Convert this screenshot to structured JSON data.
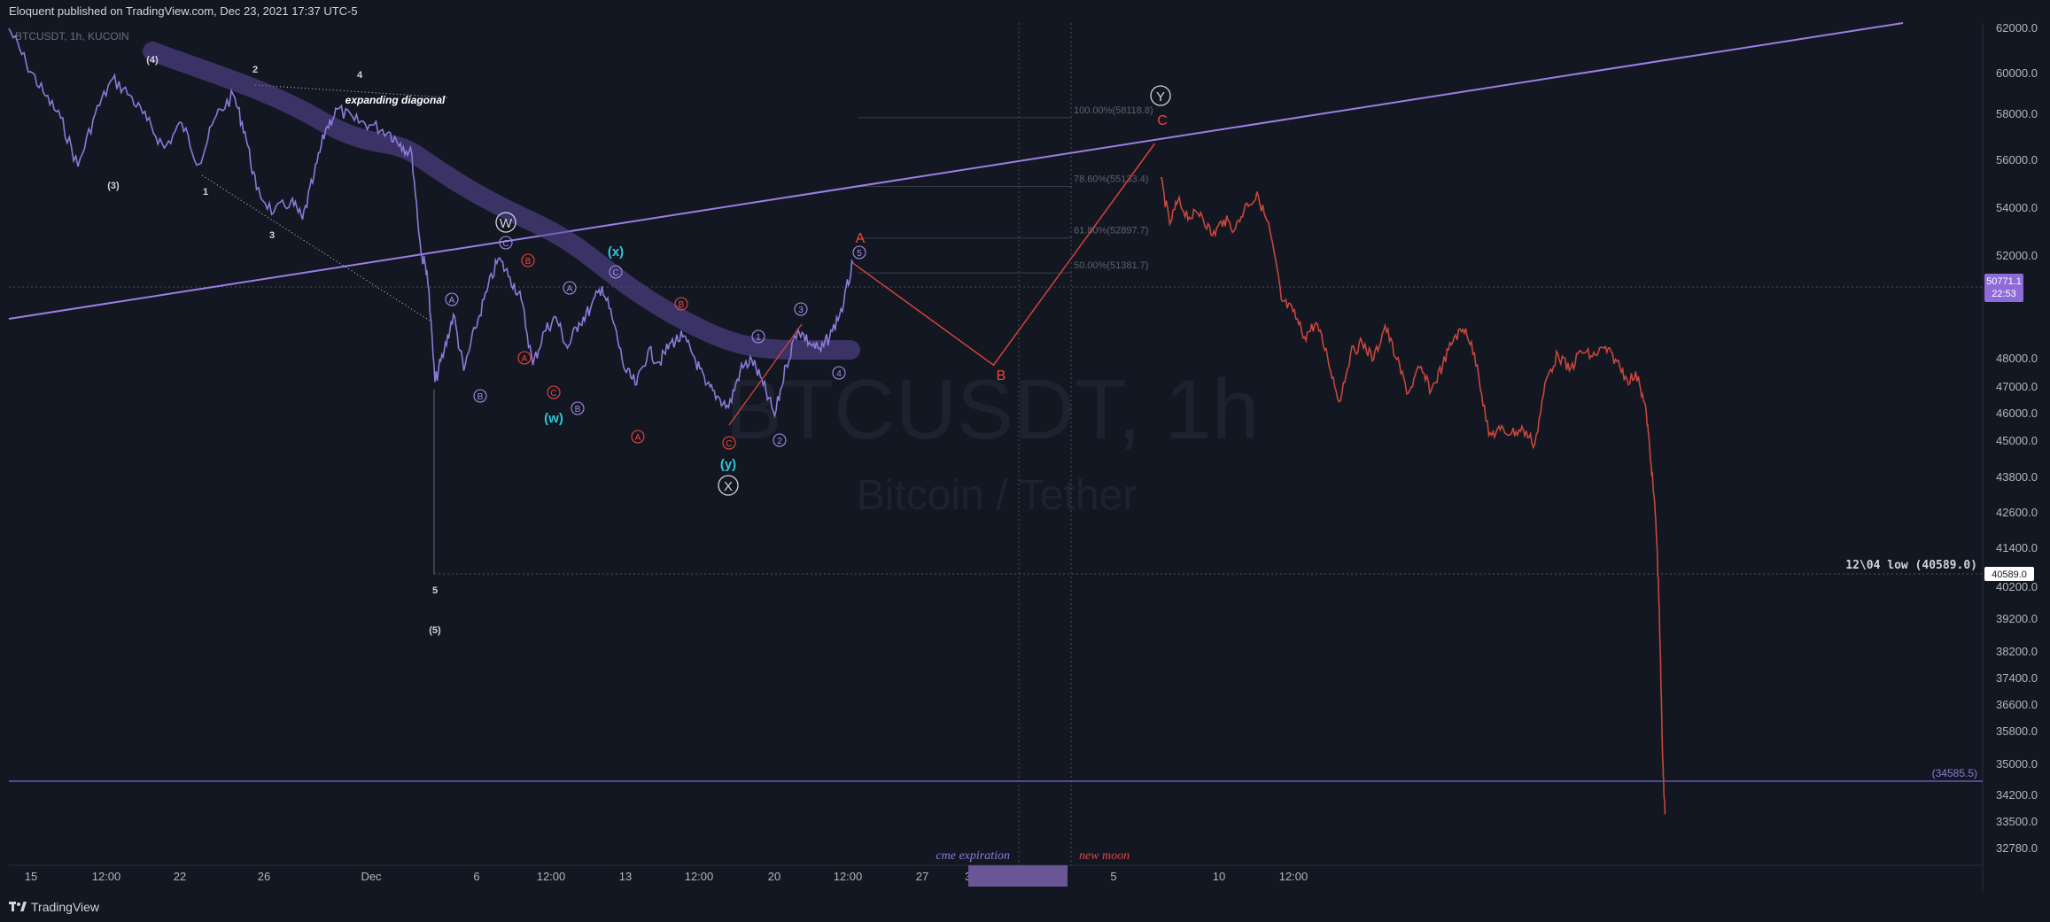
{
  "header": {
    "publish_text": "Eloquent published on TradingView.com, Dec 23, 2021 17:37 UTC-5",
    "symbol_info": "BTCUSDT, 1h, KUCOIN"
  },
  "watermark": {
    "symbol": "BTCUSDT, 1h",
    "description": "Bitcoin / Tether"
  },
  "footer": {
    "brand": "TradingView"
  },
  "colors": {
    "background": "#131722",
    "historic_price": "#8c7ad8",
    "projected_price": "#d2443a",
    "trendline": "#9c7fe6",
    "wave_red": "#f0443c",
    "wave_cyan": "#2cc9d8",
    "wave_purple": "#a58ae6",
    "price_tag": "#8e6bd8"
  },
  "chart_data": {
    "type": "line",
    "title": "",
    "xlabel": "",
    "ylabel": "",
    "ylim": [
      32200,
      62300
    ],
    "y_ticks": [
      "62000.0",
      "60000.0",
      "58000.0",
      "56000.0",
      "54000.0",
      "52000.0",
      "48000.0",
      "47000.0",
      "46000.0",
      "45000.0",
      "43800.0",
      "42600.0",
      "41400.0",
      "40200.0",
      "39200.0",
      "38200.0",
      "37400.0",
      "36600.0",
      "35800.0",
      "35000.0",
      "34200.0",
      "33500.0",
      "32780.0"
    ],
    "x_ticks": [
      "15",
      "12:00",
      "22",
      "26",
      "Dec",
      "6",
      "12:00",
      "13",
      "12:00",
      "20",
      "12:00",
      "27",
      "31 Dec '21",
      "12:00",
      "5",
      "10",
      "12:00"
    ],
    "current_price": {
      "value": "50771.1",
      "countdown": "22:53"
    },
    "horizontal_levels": [
      {
        "label": "12\\04 low (40589.0)",
        "tag": "40589.0",
        "value": 40589.0
      },
      {
        "label": "(34585.5)",
        "value": 34585.5
      }
    ],
    "fibonacci": [
      {
        "label": "100.00%(58118.8)",
        "value": 58118.8
      },
      {
        "label": "78.60%(55133.4)",
        "value": 55133.4
      },
      {
        "label": "61.80%(52897.7)",
        "value": 52897.7
      },
      {
        "label": "50.00%(51381.7)",
        "value": 51381.7
      }
    ],
    "vertical_labels": [
      {
        "label": "cme expiration"
      },
      {
        "label": "new moon"
      }
    ],
    "historic_path": [
      [
        0,
        62000
      ],
      [
        1.5,
        60500
      ],
      [
        3,
        59200
      ],
      [
        4.5,
        58100
      ],
      [
        6,
        56000
      ],
      [
        7.5,
        58300
      ],
      [
        9,
        59800
      ],
      [
        10.5,
        59100
      ],
      [
        12,
        58000
      ],
      [
        13.5,
        56800
      ],
      [
        15,
        57900
      ],
      [
        16.5,
        56100
      ],
      [
        18,
        58200
      ],
      [
        19.5,
        59100
      ],
      [
        20.5,
        57500
      ],
      [
        21.5,
        55000
      ],
      [
        23,
        54000
      ],
      [
        24.5,
        54500
      ],
      [
        25.5,
        53700
      ],
      [
        26.5,
        55600
      ],
      [
        27.5,
        57600
      ],
      [
        28.5,
        58500
      ],
      [
        30,
        58000
      ],
      [
        31.5,
        57800
      ],
      [
        33,
        57500
      ],
      [
        34,
        57000
      ],
      [
        35,
        56500
      ],
      [
        35.8,
        52200
      ],
      [
        36.3,
        51500
      ],
      [
        37,
        47400
      ],
      [
        37.8,
        48500
      ],
      [
        38.6,
        49800
      ],
      [
        39.5,
        47800
      ],
      [
        40.5,
        49300
      ],
      [
        41.5,
        50600
      ],
      [
        42.5,
        52000
      ],
      [
        43.5,
        51200
      ],
      [
        44.5,
        50300
      ],
      [
        45.5,
        48000
      ],
      [
        46.5,
        49200
      ],
      [
        47.5,
        49700
      ],
      [
        48.5,
        48600
      ],
      [
        49.5,
        49500
      ],
      [
        50.5,
        50000
      ],
      [
        51.5,
        50800
      ],
      [
        52.5,
        49500
      ],
      [
        53.5,
        47800
      ],
      [
        54.5,
        47300
      ],
      [
        55.5,
        48500
      ],
      [
        56.5,
        48100
      ],
      [
        57.5,
        48800
      ],
      [
        58.5,
        49000
      ],
      [
        59.5,
        48300
      ],
      [
        60.5,
        47300
      ],
      [
        61.5,
        46900
      ],
      [
        62.5,
        46500
      ],
      [
        63.5,
        47800
      ],
      [
        64.5,
        48200
      ],
      [
        65.5,
        47300
      ],
      [
        66.5,
        46200
      ],
      [
        67.5,
        48000
      ],
      [
        68.5,
        49300
      ],
      [
        69.5,
        48800
      ],
      [
        70.5,
        48500
      ],
      [
        71.5,
        49200
      ],
      [
        72.5,
        50200
      ],
      [
        73.3,
        51800
      ]
    ],
    "projected_path": [
      [
        73.3,
        51800
      ],
      [
        85.5,
        48000
      ],
      [
        99.5,
        57000
      ]
    ],
    "future_path": [
      [
        100,
        55500
      ],
      [
        100.8,
        53500
      ],
      [
        101.5,
        54500
      ],
      [
        102.5,
        53800
      ],
      [
        103.5,
        54000
      ],
      [
        104.5,
        53000
      ],
      [
        105.5,
        53700
      ],
      [
        106.5,
        53300
      ],
      [
        107.5,
        54400
      ],
      [
        108.5,
        54700
      ],
      [
        109.5,
        53200
      ],
      [
        110.5,
        50300
      ],
      [
        111.5,
        49900
      ],
      [
        112.5,
        49000
      ],
      [
        113.5,
        49500
      ],
      [
        114.5,
        48300
      ],
      [
        115.5,
        46700
      ],
      [
        116.5,
        48400
      ],
      [
        117.5,
        48800
      ],
      [
        118.5,
        48200
      ],
      [
        119.5,
        49400
      ],
      [
        120.5,
        48200
      ],
      [
        121.5,
        47000
      ],
      [
        122.5,
        47900
      ],
      [
        123.5,
        47100
      ],
      [
        124.5,
        48000
      ],
      [
        125.5,
        49000
      ],
      [
        126.5,
        49300
      ],
      [
        127.5,
        48000
      ],
      [
        128.5,
        45500
      ],
      [
        129.5,
        45700
      ],
      [
        130.5,
        45600
      ],
      [
        131.5,
        45700
      ],
      [
        132.5,
        45200
      ],
      [
        133.5,
        47500
      ],
      [
        134.5,
        48400
      ],
      [
        135.5,
        47800
      ],
      [
        136.5,
        48500
      ],
      [
        137.5,
        48300
      ],
      [
        138.5,
        48600
      ],
      [
        139.5,
        48200
      ],
      [
        140.5,
        47500
      ],
      [
        141.5,
        47600
      ],
      [
        142.2,
        46200
      ],
      [
        142.6,
        44500
      ],
      [
        143,
        42500
      ],
      [
        143.3,
        39600
      ],
      [
        143.6,
        35200
      ],
      [
        143.8,
        33700
      ]
    ]
  },
  "annotations": {
    "impulse": [
      "(4)",
      "2",
      "4",
      "(3)",
      "1",
      "3",
      "5",
      "(5)"
    ],
    "diagonal": "expanding diagonal",
    "major": [
      "W",
      "X",
      "Y"
    ],
    "waves_red": [
      "A",
      "B",
      "C"
    ],
    "waves_cyan": [
      "(x)",
      "(w)",
      "(y)"
    ],
    "circled_purple": [
      "C",
      "A",
      "B",
      "A",
      "B",
      "C",
      "5",
      "1",
      "2",
      "3",
      "4"
    ],
    "circled_red": [
      "B",
      "A",
      "C",
      "B",
      "A",
      "C"
    ]
  }
}
